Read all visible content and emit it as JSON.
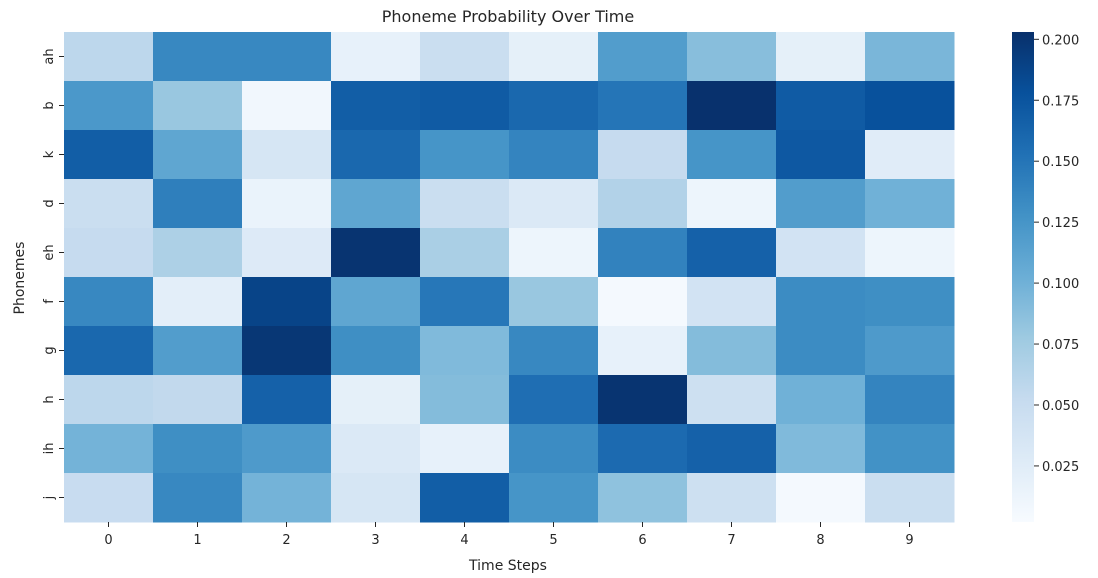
{
  "chart_data": {
    "type": "heatmap",
    "title": "Phoneme Probability Over Time",
    "xlabel": "Time Steps",
    "ylabel": "Phonemes",
    "x": [
      "0",
      "1",
      "2",
      "3",
      "4",
      "5",
      "6",
      "7",
      "8",
      "9"
    ],
    "y": [
      "ah",
      "b",
      "k",
      "d",
      "eh",
      "f",
      "g",
      "h",
      "ih",
      "j"
    ],
    "values": [
      [
        0.058,
        0.135,
        0.135,
        0.018,
        0.048,
        0.02,
        0.118,
        0.088,
        0.02,
        0.095
      ],
      [
        0.122,
        0.08,
        0.008,
        0.168,
        0.17,
        0.16,
        0.15,
        0.202,
        0.17,
        0.178
      ],
      [
        0.168,
        0.11,
        0.035,
        0.16,
        0.125,
        0.138,
        0.052,
        0.125,
        0.172,
        0.025
      ],
      [
        0.048,
        0.142,
        0.015,
        0.11,
        0.048,
        0.03,
        0.065,
        0.012,
        0.118,
        0.1
      ],
      [
        0.052,
        0.068,
        0.028,
        0.2,
        0.07,
        0.012,
        0.14,
        0.165,
        0.04,
        0.012
      ],
      [
        0.135,
        0.022,
        0.188,
        0.11,
        0.148,
        0.08,
        0.005,
        0.04,
        0.132,
        0.13
      ],
      [
        0.16,
        0.118,
        0.198,
        0.13,
        0.092,
        0.135,
        0.018,
        0.09,
        0.132,
        0.12
      ],
      [
        0.058,
        0.055,
        0.165,
        0.02,
        0.09,
        0.155,
        0.2,
        0.045,
        0.1,
        0.138
      ],
      [
        0.098,
        0.13,
        0.12,
        0.03,
        0.018,
        0.132,
        0.158,
        0.165,
        0.092,
        0.128
      ],
      [
        0.05,
        0.135,
        0.098,
        0.035,
        0.168,
        0.125,
        0.085,
        0.045,
        0.005,
        0.048
      ]
    ],
    "colorbar": {
      "ticks": [
        "0.025",
        "0.050",
        "0.075",
        "0.100",
        "0.125",
        "0.150",
        "0.175",
        "0.200"
      ],
      "tick_values": [
        0.025,
        0.05,
        0.075,
        0.1,
        0.125,
        0.15,
        0.175,
        0.2
      ],
      "vmin": 0.002,
      "vmax": 0.203
    },
    "colormap": [
      "#f7fbff",
      "#deebf7",
      "#c6dbef",
      "#9ecae1",
      "#6baed6",
      "#4292c6",
      "#2171b5",
      "#08519c",
      "#08306b"
    ],
    "grid": false,
    "legend": "colorbar-right"
  }
}
